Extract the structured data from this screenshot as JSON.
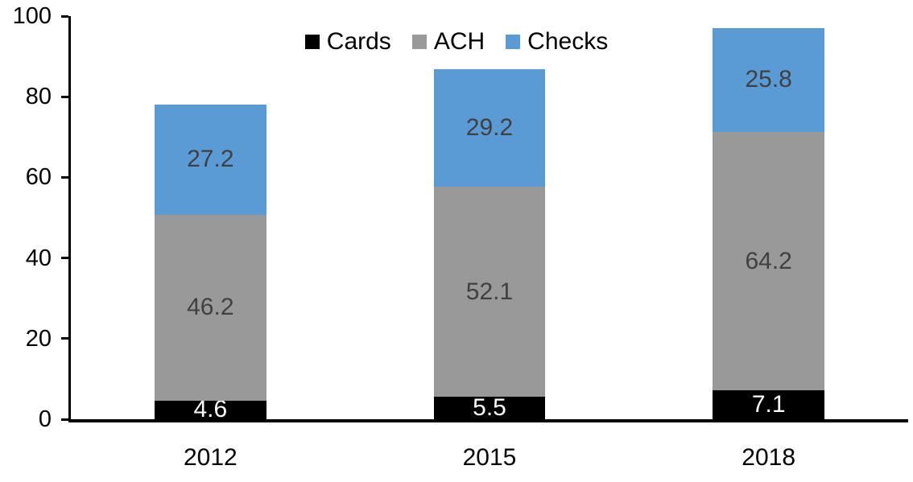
{
  "chart_data": {
    "type": "bar",
    "stacked": true,
    "title": "",
    "xlabel": "",
    "ylabel": "",
    "categories": [
      "2012",
      "2015",
      "2018"
    ],
    "series": [
      {
        "name": "Cards",
        "color": "#000000",
        "label_color": "#ffffff",
        "values": [
          4.6,
          5.5,
          7.1
        ]
      },
      {
        "name": "ACH",
        "color": "#999999",
        "label_color": "#404040",
        "values": [
          46.2,
          52.1,
          64.2
        ]
      },
      {
        "name": "Checks",
        "color": "#5B9BD5",
        "label_color": "#404040",
        "values": [
          27.2,
          29.2,
          25.8
        ]
      }
    ],
    "totals": [
      78.0,
      86.8,
      97.1
    ],
    "ylim": [
      0,
      100
    ],
    "yticks": [
      0,
      20,
      40,
      60,
      80,
      100
    ],
    "grid": false,
    "legend_position": "top-center",
    "legend": [
      "Cards",
      "ACH",
      "Checks"
    ],
    "axis_color": "#000000"
  }
}
